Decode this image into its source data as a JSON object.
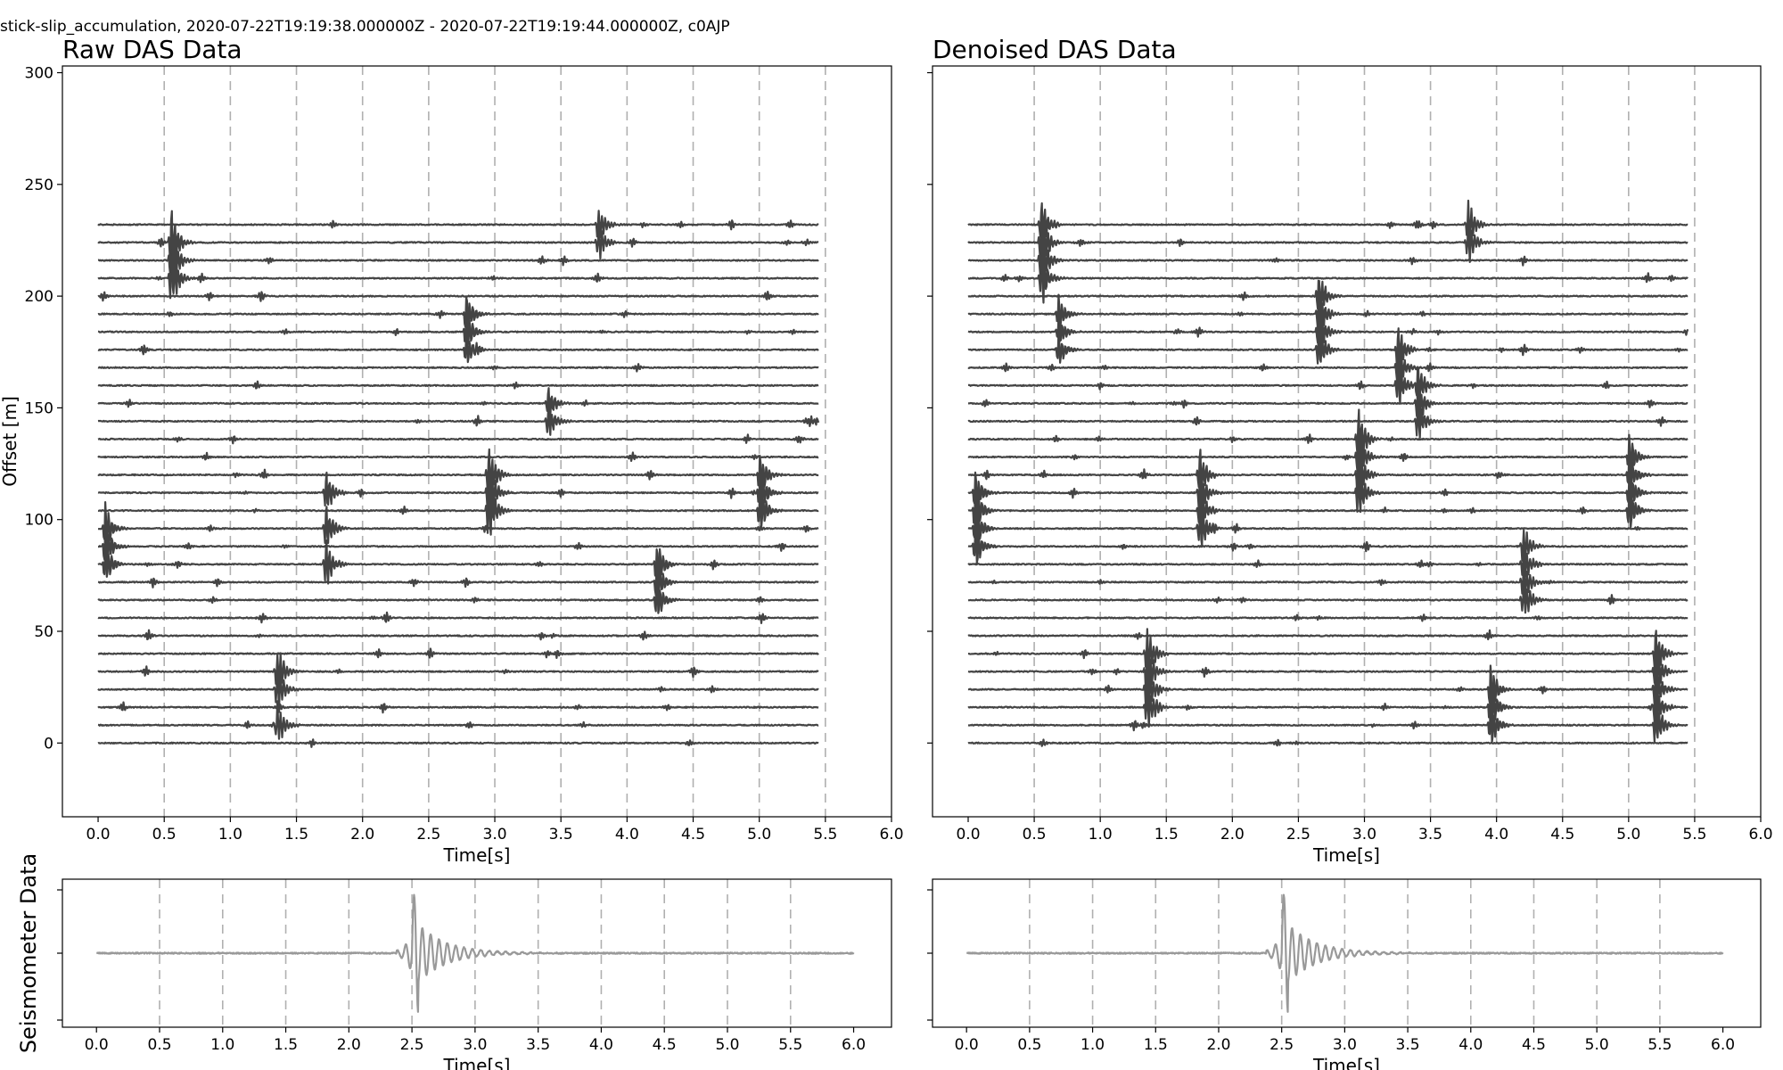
{
  "figure": {
    "suptitle": "stick-slip_accumulation, 2020-07-22T19:19:38.000000Z - 2020-07-22T19:19:44.000000Z, c0AJP"
  },
  "colors": {
    "trace": "#444444",
    "seismometer": "#999999",
    "grid": "#b0b0b0"
  },
  "chart_data": [
    {
      "id": "raw",
      "type": "line",
      "title": "Raw DAS Data",
      "xlabel": "Time[s]",
      "ylabel": "Offset [m]",
      "xlim": [
        -0.27,
        6.0
      ],
      "ylim": [
        -33,
        303
      ],
      "xticks": [
        "0.0",
        "0.5",
        "1.0",
        "1.5",
        "2.0",
        "2.5",
        "3.0",
        "3.5",
        "4.0",
        "4.5",
        "5.0",
        "5.5",
        "6.0"
      ],
      "yticks": [
        "0",
        "50",
        "100",
        "150",
        "200",
        "250",
        "300"
      ],
      "grid": "vertical dashed",
      "trace_spacing": 8,
      "trace_count": 30,
      "trace_duration_s": 5.45,
      "events": [
        {
          "t": 0.55,
          "offsets": [
            208,
            216,
            224
          ],
          "amplitude": 28
        },
        {
          "t": 0.05,
          "offsets": [
            80,
            88,
            96
          ],
          "amplitude": 22
        },
        {
          "t": 2.78,
          "offsets": [
            176,
            184,
            192
          ],
          "amplitude": 20
        },
        {
          "t": 2.95,
          "offsets": [
            104,
            112,
            120
          ],
          "amplitude": 28
        },
        {
          "t": 1.72,
          "offsets": [
            80,
            96,
            112
          ],
          "amplitude": 22
        },
        {
          "t": 5.0,
          "offsets": [
            104,
            112,
            120
          ],
          "amplitude": 22
        },
        {
          "t": 4.22,
          "offsets": [
            64,
            72,
            80
          ],
          "amplitude": 22
        },
        {
          "t": 1.35,
          "offsets": [
            8,
            24,
            32
          ],
          "amplitude": 22
        },
        {
          "t": 3.4,
          "offsets": [
            144,
            152
          ],
          "amplitude": 16
        },
        {
          "t": 3.78,
          "offsets": [
            224,
            232
          ],
          "amplitude": 16
        }
      ]
    },
    {
      "id": "denoised",
      "type": "line",
      "title": "Denoised DAS Data",
      "xlabel": "Time[s]",
      "ylabel": "",
      "xlim": [
        -0.27,
        6.0
      ],
      "ylim": [
        -33,
        303
      ],
      "xticks": [
        "0.0",
        "0.5",
        "1.0",
        "1.5",
        "2.0",
        "2.5",
        "3.0",
        "3.5",
        "4.0",
        "4.5",
        "5.0",
        "5.5",
        "6.0"
      ],
      "yticks": [],
      "grid": "vertical dashed",
      "trace_spacing": 8,
      "trace_count": 30,
      "trace_duration_s": 5.45,
      "events": [
        {
          "t": 0.55,
          "offsets": [
            208,
            216,
            224,
            232
          ],
          "amplitude": 26
        },
        {
          "t": 0.05,
          "offsets": [
            88,
            96,
            104,
            112
          ],
          "amplitude": 22
        },
        {
          "t": 1.75,
          "offsets": [
            96,
            104,
            112,
            120
          ],
          "amplitude": 22
        },
        {
          "t": 2.95,
          "offsets": [
            112,
            120,
            128,
            136
          ],
          "amplitude": 26
        },
        {
          "t": 3.25,
          "offsets": [
            160,
            168,
            176
          ],
          "amplitude": 22
        },
        {
          "t": 3.4,
          "offsets": [
            144,
            152,
            160
          ],
          "amplitude": 20
        },
        {
          "t": 2.65,
          "offsets": [
            176,
            184,
            192,
            200
          ],
          "amplitude": 22
        },
        {
          "t": 1.35,
          "offsets": [
            16,
            24,
            32,
            40
          ],
          "amplitude": 26
        },
        {
          "t": 3.95,
          "offsets": [
            8,
            16,
            24
          ],
          "amplitude": 22
        },
        {
          "t": 4.2,
          "offsets": [
            64,
            72,
            80,
            88
          ],
          "amplitude": 20
        },
        {
          "t": 5.0,
          "offsets": [
            104,
            112,
            120,
            128
          ],
          "amplitude": 20
        },
        {
          "t": 5.2,
          "offsets": [
            8,
            16,
            24,
            32,
            40
          ],
          "amplitude": 22
        },
        {
          "t": 3.78,
          "offsets": [
            224,
            232,
            240
          ],
          "amplitude": 20
        },
        {
          "t": 0.68,
          "offsets": [
            176,
            184,
            192
          ],
          "amplitude": 16
        }
      ]
    },
    {
      "id": "seis-raw",
      "type": "line",
      "title": "",
      "xlabel": "Time[s]",
      "ylabel": "Seismometer Data",
      "xlim": [
        -0.27,
        6.3
      ],
      "xticks": [
        "0.0",
        "0.5",
        "1.0",
        "1.5",
        "2.0",
        "2.5",
        "3.0",
        "3.5",
        "4.0",
        "4.5",
        "5.0",
        "5.5",
        "6.0"
      ],
      "grid": "vertical dashed",
      "trace_duration_s": 6.0,
      "event_t": 2.5
    },
    {
      "id": "seis-denoised",
      "type": "line",
      "title": "",
      "xlabel": "Time[s]",
      "ylabel": "",
      "xlim": [
        -0.27,
        6.3
      ],
      "xticks": [
        "0.0",
        "0.5",
        "1.0",
        "1.5",
        "2.0",
        "2.5",
        "3.0",
        "3.5",
        "4.0",
        "4.5",
        "5.0",
        "5.5",
        "6.0"
      ],
      "grid": "vertical dashed",
      "trace_duration_s": 6.0,
      "event_t": 2.5
    }
  ]
}
